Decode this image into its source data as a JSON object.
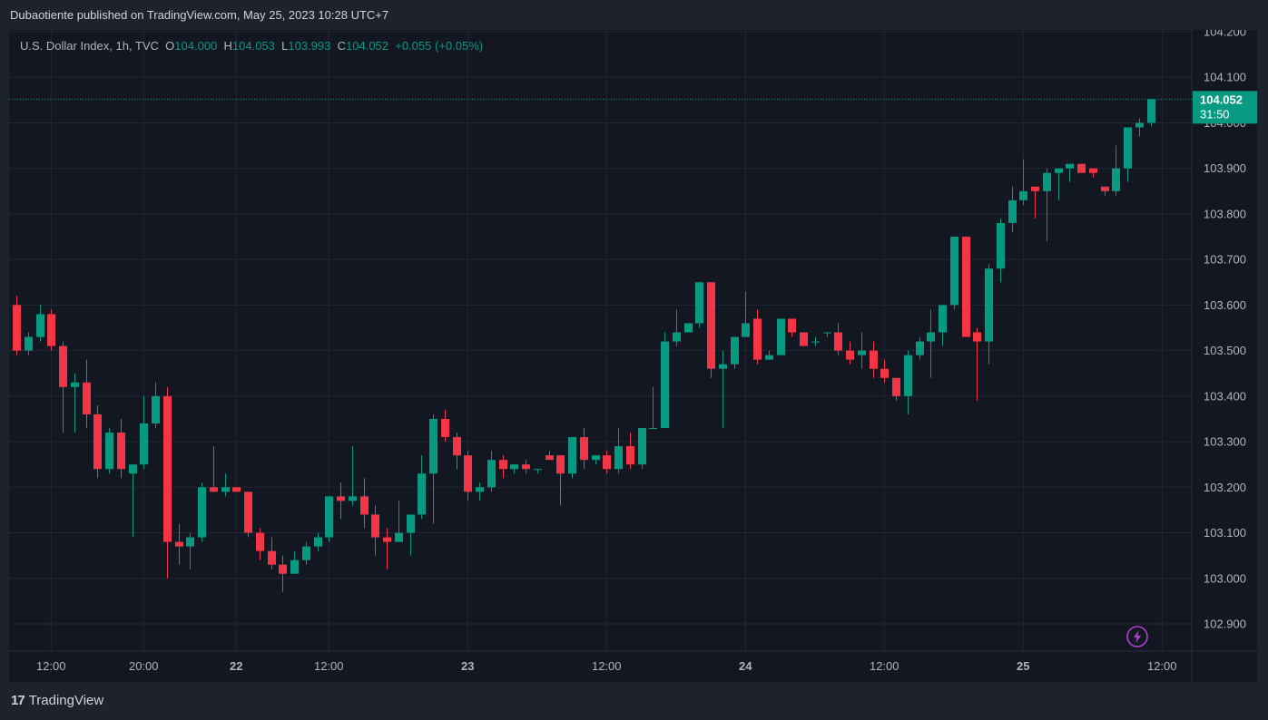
{
  "caption": "Dubaotiente published on TradingView.com, May 25, 2023 10:28 UTC+7",
  "legend": {
    "symbol": "U.S. Dollar Index, 1h, TVC",
    "o_label": "O",
    "o": "104.000",
    "h_label": "H",
    "h": "104.053",
    "l_label": "L",
    "l": "103.993",
    "c_label": "C",
    "c": "104.052",
    "change": "+0.055 (+0.05%)"
  },
  "price_tag": {
    "price": "104.052",
    "countdown": "31:50"
  },
  "brand": {
    "logo": "17",
    "name": "TradingView"
  },
  "colors": {
    "up": "#089981",
    "down": "#f23645",
    "grid": "#232733",
    "background": "#131722",
    "frame": "#1e222d",
    "bolt": "#b13fd1"
  },
  "icons": {
    "bolt": "lightning-bolt-icon"
  },
  "chart_data": {
    "type": "candlestick",
    "title": "U.S. Dollar Index, 1h, TVC",
    "ylim": [
      102.88,
      104.2
    ],
    "y_ticks": [
      "104.200",
      "104.100",
      "104.000",
      "103.900",
      "103.800",
      "103.700",
      "103.600",
      "103.500",
      "103.400",
      "103.300",
      "103.200",
      "103.100",
      "103.000",
      "102.900"
    ],
    "y_tick_values": [
      104.2,
      104.1,
      104.0,
      103.9,
      103.8,
      103.7,
      103.6,
      103.5,
      103.4,
      103.3,
      103.2,
      103.1,
      103.0,
      102.9
    ],
    "x_ticks": [
      {
        "label": "12:00",
        "index": 3,
        "bold": false
      },
      {
        "label": "20:00",
        "index": 11,
        "bold": false
      },
      {
        "label": "22",
        "index": 19,
        "bold": true
      },
      {
        "label": "12:00",
        "index": 27,
        "bold": false
      },
      {
        "label": "23",
        "index": 39,
        "bold": true
      },
      {
        "label": "12:00",
        "index": 51,
        "bold": false
      },
      {
        "label": "24",
        "index": 63,
        "bold": true
      },
      {
        "label": "12:00",
        "index": 75,
        "bold": false
      },
      {
        "label": "25",
        "index": 87,
        "bold": true
      },
      {
        "label": "12:00",
        "index": 99,
        "bold": false
      }
    ],
    "last_price": 104.052,
    "candles": [
      {
        "o": 103.6,
        "h": 103.62,
        "l": 103.49,
        "c": 103.5
      },
      {
        "o": 103.5,
        "h": 103.54,
        "l": 103.49,
        "c": 103.53
      },
      {
        "o": 103.53,
        "h": 103.6,
        "l": 103.52,
        "c": 103.58
      },
      {
        "o": 103.58,
        "h": 103.59,
        "l": 103.5,
        "c": 103.51
      },
      {
        "o": 103.51,
        "h": 103.52,
        "l": 103.32,
        "c": 103.42
      },
      {
        "o": 103.42,
        "h": 103.45,
        "l": 103.32,
        "c": 103.43
      },
      {
        "o": 103.43,
        "h": 103.48,
        "l": 103.33,
        "c": 103.36
      },
      {
        "o": 103.36,
        "h": 103.38,
        "l": 103.22,
        "c": 103.24
      },
      {
        "o": 103.24,
        "h": 103.33,
        "l": 103.23,
        "c": 103.32
      },
      {
        "o": 103.32,
        "h": 103.35,
        "l": 103.22,
        "c": 103.24
      },
      {
        "o": 103.23,
        "h": 103.25,
        "l": 103.09,
        "c": 103.25
      },
      {
        "o": 103.25,
        "h": 103.4,
        "l": 103.24,
        "c": 103.34
      },
      {
        "o": 103.34,
        "h": 103.43,
        "l": 103.33,
        "c": 103.4
      },
      {
        "o": 103.4,
        "h": 103.42,
        "l": 103.0,
        "c": 103.08
      },
      {
        "o": 103.08,
        "h": 103.12,
        "l": 103.03,
        "c": 103.07
      },
      {
        "o": 103.07,
        "h": 103.1,
        "l": 103.02,
        "c": 103.09
      },
      {
        "o": 103.09,
        "h": 103.21,
        "l": 103.08,
        "c": 103.2
      },
      {
        "o": 103.2,
        "h": 103.29,
        "l": 103.19,
        "c": 103.19
      },
      {
        "o": 103.19,
        "h": 103.23,
        "l": 103.18,
        "c": 103.2
      },
      {
        "o": 103.2,
        "h": 103.2,
        "l": 103.19,
        "c": 103.19
      },
      {
        "o": 103.19,
        "h": 103.19,
        "l": 103.09,
        "c": 103.1
      },
      {
        "o": 103.1,
        "h": 103.11,
        "l": 103.04,
        "c": 103.06
      },
      {
        "o": 103.06,
        "h": 103.09,
        "l": 103.02,
        "c": 103.03
      },
      {
        "o": 103.03,
        "h": 103.05,
        "l": 102.97,
        "c": 103.01
      },
      {
        "o": 103.01,
        "h": 103.06,
        "l": 103.01,
        "c": 103.04
      },
      {
        "o": 103.04,
        "h": 103.08,
        "l": 103.03,
        "c": 103.07
      },
      {
        "o": 103.07,
        "h": 103.1,
        "l": 103.06,
        "c": 103.09
      },
      {
        "o": 103.09,
        "h": 103.18,
        "l": 103.08,
        "c": 103.18
      },
      {
        "o": 103.18,
        "h": 103.21,
        "l": 103.13,
        "c": 103.17
      },
      {
        "o": 103.17,
        "h": 103.29,
        "l": 103.16,
        "c": 103.18
      },
      {
        "o": 103.18,
        "h": 103.22,
        "l": 103.11,
        "c": 103.14
      },
      {
        "o": 103.14,
        "h": 103.16,
        "l": 103.05,
        "c": 103.09
      },
      {
        "o": 103.09,
        "h": 103.11,
        "l": 103.02,
        "c": 103.08
      },
      {
        "o": 103.08,
        "h": 103.17,
        "l": 103.08,
        "c": 103.1
      },
      {
        "o": 103.1,
        "h": 103.14,
        "l": 103.05,
        "c": 103.14
      },
      {
        "o": 103.14,
        "h": 103.27,
        "l": 103.13,
        "c": 103.23
      },
      {
        "o": 103.23,
        "h": 103.36,
        "l": 103.12,
        "c": 103.35
      },
      {
        "o": 103.35,
        "h": 103.37,
        "l": 103.3,
        "c": 103.31
      },
      {
        "o": 103.31,
        "h": 103.32,
        "l": 103.24,
        "c": 103.27
      },
      {
        "o": 103.27,
        "h": 103.28,
        "l": 103.17,
        "c": 103.19
      },
      {
        "o": 103.19,
        "h": 103.21,
        "l": 103.17,
        "c": 103.2
      },
      {
        "o": 103.2,
        "h": 103.28,
        "l": 103.19,
        "c": 103.26
      },
      {
        "o": 103.26,
        "h": 103.27,
        "l": 103.22,
        "c": 103.24
      },
      {
        "o": 103.24,
        "h": 103.25,
        "l": 103.23,
        "c": 103.25
      },
      {
        "o": 103.25,
        "h": 103.26,
        "l": 103.23,
        "c": 103.24
      },
      {
        "o": 103.24,
        "h": 103.24,
        "l": 103.23,
        "c": 103.24
      },
      {
        "o": 103.27,
        "h": 103.28,
        "l": 103.26,
        "c": 103.26
      },
      {
        "o": 103.27,
        "h": 103.27,
        "l": 103.16,
        "c": 103.23
      },
      {
        "o": 103.23,
        "h": 103.31,
        "l": 103.22,
        "c": 103.31
      },
      {
        "o": 103.31,
        "h": 103.33,
        "l": 103.24,
        "c": 103.26
      },
      {
        "o": 103.26,
        "h": 103.27,
        "l": 103.25,
        "c": 103.27
      },
      {
        "o": 103.27,
        "h": 103.28,
        "l": 103.23,
        "c": 103.24
      },
      {
        "o": 103.24,
        "h": 103.33,
        "l": 103.23,
        "c": 103.29
      },
      {
        "o": 103.29,
        "h": 103.32,
        "l": 103.24,
        "c": 103.25
      },
      {
        "o": 103.25,
        "h": 103.33,
        "l": 103.24,
        "c": 103.33
      },
      {
        "o": 103.33,
        "h": 103.42,
        "l": 103.33,
        "c": 103.33
      },
      {
        "o": 103.33,
        "h": 103.54,
        "l": 103.33,
        "c": 103.52
      },
      {
        "o": 103.52,
        "h": 103.59,
        "l": 103.51,
        "c": 103.54
      },
      {
        "o": 103.54,
        "h": 103.56,
        "l": 103.54,
        "c": 103.56
      },
      {
        "o": 103.56,
        "h": 103.65,
        "l": 103.55,
        "c": 103.65
      },
      {
        "o": 103.65,
        "h": 103.65,
        "l": 103.44,
        "c": 103.46
      },
      {
        "o": 103.46,
        "h": 103.5,
        "l": 103.33,
        "c": 103.47
      },
      {
        "o": 103.47,
        "h": 103.53,
        "l": 103.46,
        "c": 103.53
      },
      {
        "o": 103.53,
        "h": 103.63,
        "l": 103.53,
        "c": 103.56
      },
      {
        "o": 103.57,
        "h": 103.59,
        "l": 103.47,
        "c": 103.48
      },
      {
        "o": 103.48,
        "h": 103.5,
        "l": 103.48,
        "c": 103.49
      },
      {
        "o": 103.49,
        "h": 103.57,
        "l": 103.49,
        "c": 103.57
      },
      {
        "o": 103.57,
        "h": 103.57,
        "l": 103.53,
        "c": 103.54
      },
      {
        "o": 103.54,
        "h": 103.54,
        "l": 103.51,
        "c": 103.51
      },
      {
        "o": 103.52,
        "h": 103.53,
        "l": 103.51,
        "c": 103.52
      },
      {
        "o": 103.54,
        "h": 103.54,
        "l": 103.53,
        "c": 103.54
      },
      {
        "o": 103.54,
        "h": 103.56,
        "l": 103.49,
        "c": 103.5
      },
      {
        "o": 103.5,
        "h": 103.52,
        "l": 103.47,
        "c": 103.48
      },
      {
        "o": 103.49,
        "h": 103.54,
        "l": 103.46,
        "c": 103.5
      },
      {
        "o": 103.5,
        "h": 103.52,
        "l": 103.44,
        "c": 103.46
      },
      {
        "o": 103.46,
        "h": 103.48,
        "l": 103.43,
        "c": 103.44
      },
      {
        "o": 103.44,
        "h": 103.44,
        "l": 103.39,
        "c": 103.4
      },
      {
        "o": 103.4,
        "h": 103.5,
        "l": 103.36,
        "c": 103.49
      },
      {
        "o": 103.49,
        "h": 103.53,
        "l": 103.48,
        "c": 103.52
      },
      {
        "o": 103.52,
        "h": 103.59,
        "l": 103.44,
        "c": 103.54
      },
      {
        "o": 103.54,
        "h": 103.6,
        "l": 103.51,
        "c": 103.6
      },
      {
        "o": 103.6,
        "h": 103.75,
        "l": 103.59,
        "c": 103.75
      },
      {
        "o": 103.75,
        "h": 103.75,
        "l": 103.53,
        "c": 103.53
      },
      {
        "o": 103.54,
        "h": 103.55,
        "l": 103.39,
        "c": 103.52
      },
      {
        "o": 103.52,
        "h": 103.69,
        "l": 103.47,
        "c": 103.68
      },
      {
        "o": 103.68,
        "h": 103.79,
        "l": 103.65,
        "c": 103.78
      },
      {
        "o": 103.78,
        "h": 103.86,
        "l": 103.76,
        "c": 103.83
      },
      {
        "o": 103.83,
        "h": 103.92,
        "l": 103.82,
        "c": 103.85
      },
      {
        "o": 103.86,
        "h": 103.86,
        "l": 103.79,
        "c": 103.85
      },
      {
        "o": 103.85,
        "h": 103.9,
        "l": 103.74,
        "c": 103.89
      },
      {
        "o": 103.89,
        "h": 103.9,
        "l": 103.83,
        "c": 103.9
      },
      {
        "o": 103.9,
        "h": 103.91,
        "l": 103.87,
        "c": 103.91
      },
      {
        "o": 103.91,
        "h": 103.91,
        "l": 103.89,
        "c": 103.89
      },
      {
        "o": 103.9,
        "h": 103.9,
        "l": 103.88,
        "c": 103.89
      },
      {
        "o": 103.86,
        "h": 103.86,
        "l": 103.84,
        "c": 103.85
      },
      {
        "o": 103.85,
        "h": 103.95,
        "l": 103.84,
        "c": 103.9
      },
      {
        "o": 103.9,
        "h": 103.99,
        "l": 103.87,
        "c": 103.99
      },
      {
        "o": 103.99,
        "h": 104.01,
        "l": 103.97,
        "c": 104.0
      },
      {
        "o": 104.0,
        "h": 104.053,
        "l": 103.993,
        "c": 104.052
      }
    ]
  }
}
